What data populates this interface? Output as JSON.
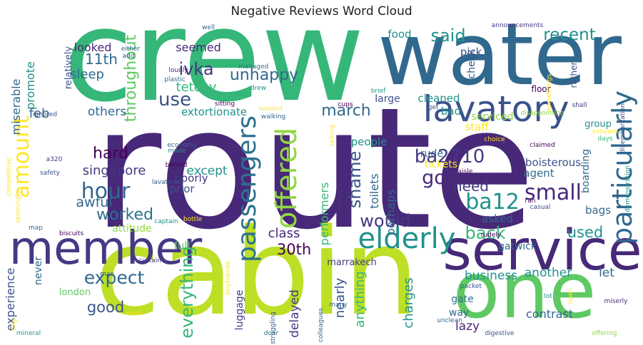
{
  "chart_data": {
    "type": "wordcloud",
    "title": "Negative Reviews Word Cloud",
    "palette": [
      "#440154",
      "#443983",
      "#31688e",
      "#21918c",
      "#35b779",
      "#90d743",
      "#bddf26",
      "#fde725"
    ],
    "words": [
      {
        "text": "route",
        "weight": 1.0,
        "color": "#482878",
        "rot": 0
      },
      {
        "text": "crew",
        "weight": 0.66,
        "color": "#35b779",
        "rot": 0
      },
      {
        "text": "cabin",
        "weight": 0.62,
        "color": "#bddf26",
        "rot": 0
      },
      {
        "text": "water",
        "weight": 0.45,
        "color": "#31688e",
        "rot": 0
      },
      {
        "text": "one",
        "weight": 0.4,
        "color": "#5ec962",
        "rot": 0
      },
      {
        "text": "service",
        "weight": 0.33,
        "color": "#482878",
        "rot": 0
      },
      {
        "text": "member",
        "weight": 0.26,
        "color": "#443983",
        "rot": 0
      },
      {
        "text": "lavatory",
        "weight": 0.22,
        "color": "#3b528b",
        "rot": 0
      },
      {
        "text": "particularly",
        "weight": 0.18,
        "color": "#31688e",
        "rot": 90
      },
      {
        "text": "passengers",
        "weight": 0.17,
        "color": "#2c728e",
        "rot": 90
      },
      {
        "text": "offered",
        "weight": 0.17,
        "color": "#90d743",
        "rot": 90
      },
      {
        "text": "elderly",
        "weight": 0.16,
        "color": "#21918c",
        "rot": 0
      },
      {
        "text": "amount",
        "weight": 0.12,
        "color": "#fde725",
        "rot": 90
      },
      {
        "text": "hour",
        "weight": 0.12,
        "color": "#31688e",
        "rot": 0
      },
      {
        "text": "small",
        "weight": 0.11,
        "color": "#482878",
        "rot": 0
      },
      {
        "text": "ba12",
        "weight": 0.11,
        "color": "#21918c",
        "rot": 0
      },
      {
        "text": "everything",
        "weight": 0.1,
        "color": "#35b779",
        "rot": 90
      },
      {
        "text": "expect",
        "weight": 0.1,
        "color": "#31688e",
        "rot": 0
      },
      {
        "text": "back",
        "weight": 0.1,
        "color": "#35b779",
        "rot": 0
      },
      {
        "text": "would",
        "weight": 0.09,
        "color": "#443983",
        "rot": 0
      },
      {
        "text": "shame",
        "weight": 0.09,
        "color": "#3b528b",
        "rot": 90
      },
      {
        "text": "recent",
        "weight": 0.09,
        "color": "#21918c",
        "rot": 0
      },
      {
        "text": "use",
        "weight": 0.09,
        "color": "#3b528b",
        "rot": 0
      },
      {
        "text": "go",
        "weight": 0.09,
        "color": "#482878",
        "rot": 0
      },
      {
        "text": "ba2710",
        "weight": 0.09,
        "color": "#443983",
        "rot": 0
      },
      {
        "text": "said",
        "weight": 0.09,
        "color": "#21918c",
        "rot": 0
      },
      {
        "text": "ivka",
        "weight": 0.08,
        "color": "#443983",
        "rot": 0
      },
      {
        "text": "throughout",
        "weight": 0.08,
        "color": "#5ec962",
        "rot": 90
      },
      {
        "text": "march",
        "weight": 0.08,
        "color": "#31688e",
        "rot": 0
      },
      {
        "text": "hard",
        "weight": 0.08,
        "color": "#440154",
        "rot": 0
      },
      {
        "text": "unhappy",
        "weight": 0.08,
        "color": "#31688e",
        "rot": 0
      },
      {
        "text": "worked",
        "weight": 0.08,
        "color": "#2c728e",
        "rot": 0
      },
      {
        "text": "used",
        "weight": 0.08,
        "color": "#21918c",
        "rot": 0
      },
      {
        "text": "30th",
        "weight": 0.08,
        "color": "#440154",
        "rot": 0
      },
      {
        "text": "good",
        "weight": 0.08,
        "color": "#3b528b",
        "rot": 0
      },
      {
        "text": "anything",
        "weight": 0.07,
        "color": "#35b779",
        "rot": 90
      },
      {
        "text": "nearly",
        "weight": 0.07,
        "color": "#3b528b",
        "rot": 90
      },
      {
        "text": "charges",
        "weight": 0.07,
        "color": "#21918c",
        "rot": 90
      },
      {
        "text": "11th",
        "weight": 0.07,
        "color": "#31688e",
        "rot": 0
      },
      {
        "text": "sleep",
        "weight": 0.07,
        "color": "#31688e",
        "rot": 0
      },
      {
        "text": "need",
        "weight": 0.07,
        "color": "#443983",
        "rot": 0
      },
      {
        "text": "tetchy",
        "weight": 0.07,
        "color": "#35b779",
        "rot": 0
      },
      {
        "text": "awful",
        "weight": 0.07,
        "color": "#31688e",
        "rot": 0
      },
      {
        "text": "singapore",
        "weight": 0.06,
        "color": "#443983",
        "rot": 0
      },
      {
        "text": "miserable",
        "weight": 0.06,
        "color": "#31688e",
        "rot": 90
      },
      {
        "text": "promote",
        "weight": 0.06,
        "color": "#21918c",
        "rot": 90
      },
      {
        "text": "delayed",
        "weight": 0.06,
        "color": "#443983",
        "rot": 90
      },
      {
        "text": "experience",
        "weight": 0.06,
        "color": "#3b528b",
        "rot": 90
      },
      {
        "text": "performers",
        "weight": 0.06,
        "color": "#35b779",
        "rot": 90
      },
      {
        "text": "perhaps",
        "weight": 0.06,
        "color": "#31688e",
        "rot": 90
      },
      {
        "text": "toilets",
        "weight": 0.06,
        "color": "#31688e",
        "rot": 90
      },
      {
        "text": "looked",
        "weight": 0.06,
        "color": "#482878",
        "rot": 0
      },
      {
        "text": "seemed",
        "weight": 0.06,
        "color": "#482878",
        "rot": 0
      },
      {
        "text": "others",
        "weight": 0.06,
        "color": "#31688e",
        "rot": 0
      },
      {
        "text": "feb",
        "weight": 0.06,
        "color": "#31688e",
        "rot": 0
      },
      {
        "text": "except",
        "weight": 0.06,
        "color": "#21918c",
        "rot": 0
      },
      {
        "text": "class",
        "weight": 0.06,
        "color": "#482878",
        "rot": 0
      },
      {
        "text": "another",
        "weight": 0.06,
        "color": "#21918c",
        "rot": 0
      },
      {
        "text": "let",
        "weight": 0.06,
        "color": "#31688e",
        "rot": 0
      },
      {
        "text": "business",
        "weight": 0.06,
        "color": "#21918c",
        "rot": 0
      },
      {
        "text": "contrast",
        "weight": 0.06,
        "color": "#31688e",
        "rot": 0
      },
      {
        "text": "lazy",
        "weight": 0.06,
        "color": "#482878",
        "rot": 0
      },
      {
        "text": "bags",
        "weight": 0.05,
        "color": "#31688e",
        "rot": 0
      },
      {
        "text": "prior",
        "weight": 0.05,
        "color": "#3b528b",
        "rot": 0
      },
      {
        "text": "poorly",
        "weight": 0.05,
        "color": "#443983",
        "rot": 0
      },
      {
        "text": "extortionate",
        "weight": 0.05,
        "color": "#21918c",
        "rot": 0
      },
      {
        "text": "cleaned",
        "weight": 0.05,
        "color": "#21918c",
        "rot": 0
      },
      {
        "text": "people",
        "weight": 0.05,
        "color": "#21918c",
        "rot": 0
      },
      {
        "text": "agent",
        "weight": 0.05,
        "color": "#31688e",
        "rot": 0
      },
      {
        "text": "boisterous",
        "weight": 0.05,
        "color": "#3b528b",
        "rot": 0
      },
      {
        "text": "asked",
        "weight": 0.05,
        "color": "#31688e",
        "rot": 0
      },
      {
        "text": "gatwick",
        "weight": 0.05,
        "color": "#31688e",
        "rot": 0
      },
      {
        "text": "gate",
        "weight": 0.05,
        "color": "#2c728e",
        "rot": 0
      },
      {
        "text": "full",
        "weight": 0.05,
        "color": "#5ec962",
        "rot": 0
      },
      {
        "text": "food",
        "weight": 0.05,
        "color": "#21918c",
        "rot": 0
      },
      {
        "text": "pick",
        "weight": 0.05,
        "color": "#3b528b",
        "rot": 0
      },
      {
        "text": "check",
        "weight": 0.05,
        "color": "#3b528b",
        "rot": 90
      },
      {
        "text": "relatively",
        "weight": 0.05,
        "color": "#3b528b",
        "rot": 90
      },
      {
        "text": "staff",
        "weight": 0.05,
        "color": "#fde725",
        "rot": 0
      },
      {
        "text": "tickets",
        "weight": 0.05,
        "color": "#fde725",
        "rot": 0
      },
      {
        "text": "bad",
        "weight": 0.05,
        "color": "#21918c",
        "rot": 0
      },
      {
        "text": "rude",
        "weight": 0.05,
        "color": "#31688e",
        "rot": 0
      },
      {
        "text": "serviced",
        "weight": 0.05,
        "color": "#90d743",
        "rot": 0
      },
      {
        "text": "boarding",
        "weight": 0.05,
        "color": "#31688e",
        "rot": 90
      },
      {
        "text": "luggage",
        "weight": 0.05,
        "color": "#443983",
        "rot": 90
      },
      {
        "text": "attitude",
        "weight": 0.05,
        "color": "#90d743",
        "rot": 0
      },
      {
        "text": "way",
        "weight": 0.05,
        "color": "#31688e",
        "rot": 0
      },
      {
        "text": "never",
        "weight": 0.05,
        "color": "#31688e",
        "rot": 90
      },
      {
        "text": "large",
        "weight": 0.04,
        "color": "#3b528b",
        "rot": 0
      },
      {
        "text": "group",
        "weight": 0.04,
        "color": "#21918c",
        "rot": 0
      },
      {
        "text": "marrakech",
        "weight": 0.04,
        "color": "#443983",
        "rot": 0
      },
      {
        "text": "london",
        "weight": 0.04,
        "color": "#5ec962",
        "rot": 0
      },
      {
        "text": "rather",
        "weight": 0.04,
        "color": "#3b528b",
        "rot": 90
      },
      {
        "text": "floor",
        "weight": 0.04,
        "color": "#440154",
        "rot": 0
      },
      {
        "text": "plastic",
        "weight": 0.03,
        "color": "#31688e",
        "rot": 0
      },
      {
        "text": "loudly",
        "weight": 0.03,
        "color": "#482878",
        "rot": 0
      },
      {
        "text": "managed",
        "weight": 0.03,
        "color": "#2c728e",
        "rot": 0
      },
      {
        "text": "sitting",
        "weight": 0.03,
        "color": "#440154",
        "rot": 0
      },
      {
        "text": "drew",
        "weight": 0.03,
        "color": "#21918c",
        "rot": 0
      },
      {
        "text": "walking",
        "weight": 0.03,
        "color": "#31688e",
        "rot": 0
      },
      {
        "text": "needed",
        "weight": 0.03,
        "color": "#fde725",
        "rot": 0
      },
      {
        "text": "cups",
        "weight": 0.03,
        "color": "#440154",
        "rot": 0
      },
      {
        "text": "talking",
        "weight": 0.03,
        "color": "#fde725",
        "rot": 90
      },
      {
        "text": "brief",
        "weight": 0.03,
        "color": "#21918c",
        "rot": 0
      },
      {
        "text": "disappointing",
        "weight": 0.03,
        "color": "#90d743",
        "rot": 0
      },
      {
        "text": "disembarkation",
        "weight": 0.03,
        "color": "#3b528b",
        "rot": 90
      },
      {
        "text": "demonstration",
        "weight": 0.03,
        "color": "#21918c",
        "rot": 90
      },
      {
        "text": "concern",
        "weight": 0.03,
        "color": "#fde725",
        "rot": 0
      },
      {
        "text": "days",
        "weight": 0.03,
        "color": "#35b779",
        "rot": 0
      },
      {
        "text": "claimed",
        "weight": 0.03,
        "color": "#440154",
        "rot": 0
      },
      {
        "text": "choice",
        "weight": 0.03,
        "color": "#fde725",
        "rot": 0
      },
      {
        "text": "get",
        "weight": 0.03,
        "color": "#3b528b",
        "rot": 0
      },
      {
        "text": "approach",
        "weight": 0.03,
        "color": "#443983",
        "rot": 90
      },
      {
        "text": "aisle",
        "weight": 0.03,
        "color": "#440154",
        "rot": 0
      },
      {
        "text": "ran",
        "weight": 0.03,
        "color": "#440154",
        "rot": 0
      },
      {
        "text": "casual",
        "weight": 0.03,
        "color": "#3b528b",
        "rot": 0
      },
      {
        "text": "rudely",
        "weight": 0.03,
        "color": "#440154",
        "rot": 0
      },
      {
        "text": "boyfriends",
        "weight": 0.03,
        "color": "#fde725",
        "rot": 90
      },
      {
        "text": "struggling",
        "weight": 0.03,
        "color": "#3b528b",
        "rot": 90
      },
      {
        "text": "colleagues",
        "weight": 0.03,
        "color": "#31688e",
        "rot": 90
      },
      {
        "text": "unclean",
        "weight": 0.03,
        "color": "#31688e",
        "rot": 0
      },
      {
        "text": "packet",
        "weight": 0.03,
        "color": "#3b528b",
        "rot": 0
      },
      {
        "text": "lot",
        "weight": 0.03,
        "color": "#21918c",
        "rot": 0
      },
      {
        "text": "open",
        "weight": 0.03,
        "color": "#fde725",
        "rot": 90
      },
      {
        "text": "miserly",
        "weight": 0.03,
        "color": "#482878",
        "rot": 0
      },
      {
        "text": "offering",
        "weight": 0.03,
        "color": "#90d743",
        "rot": 0
      },
      {
        "text": "digestive",
        "weight": 0.03,
        "color": "#3b528b",
        "rot": 0
      },
      {
        "text": "many",
        "weight": 0.03,
        "color": "#31688e",
        "rot": 0
      },
      {
        "text": "door",
        "weight": 0.03,
        "color": "#2c728e",
        "rot": 0
      },
      {
        "text": "even",
        "weight": 0.03,
        "color": "#fde725",
        "rot": 0
      },
      {
        "text": "mineral",
        "weight": 0.03,
        "color": "#21918c",
        "rot": 0
      },
      {
        "text": "tiny",
        "weight": 0.03,
        "color": "#fde725",
        "rot": 90
      },
      {
        "text": "curtain",
        "weight": 0.03,
        "color": "#443983",
        "rot": 0
      },
      {
        "text": "man",
        "weight": 0.03,
        "color": "#3b528b",
        "rot": 0
      },
      {
        "text": "biscuits",
        "weight": 0.03,
        "color": "#440154",
        "rot": 0
      },
      {
        "text": "map",
        "weight": 0.03,
        "color": "#31688e",
        "rot": 0
      },
      {
        "text": "captain",
        "weight": 0.03,
        "color": "#21918c",
        "rot": 0
      },
      {
        "text": "bottle",
        "weight": 0.03,
        "color": "#fde725",
        "rot": 0
      },
      {
        "text": "lavatories",
        "weight": 0.03,
        "color": "#3b528b",
        "rot": 0
      },
      {
        "text": "behind",
        "weight": 0.03,
        "color": "#440154",
        "rot": 0
      },
      {
        "text": "made",
        "weight": 0.03,
        "color": "#21918c",
        "rot": 0
      },
      {
        "text": "economy",
        "weight": 0.03,
        "color": "#31688e",
        "rot": 0
      },
      {
        "text": "a320",
        "weight": 0.03,
        "color": "#443983",
        "rot": 0
      },
      {
        "text": "safety",
        "weight": 0.03,
        "color": "#3b528b",
        "rot": 0
      },
      {
        "text": "competitive",
        "weight": 0.03,
        "color": "#fde725",
        "rot": 90
      },
      {
        "text": "seemingly",
        "weight": 0.03,
        "color": "#fde725",
        "rot": 90
      },
      {
        "text": "ignored",
        "weight": 0.03,
        "color": "#3b528b",
        "rot": 0
      },
      {
        "text": "either",
        "weight": 0.03,
        "color": "#31688e",
        "rot": 0
      },
      {
        "text": "add",
        "weight": 0.03,
        "color": "#3b528b",
        "rot": 0
      },
      {
        "text": "well",
        "weight": 0.03,
        "color": "#31688e",
        "rot": 0
      },
      {
        "text": "announcements",
        "weight": 0.03,
        "color": "#443983",
        "rot": 0
      },
      {
        "text": "somethings",
        "weight": 0.03,
        "color": "#fde725",
        "rot": 90
      },
      {
        "text": "shall",
        "weight": 0.03,
        "color": "#443983",
        "rot": 0
      }
    ]
  }
}
